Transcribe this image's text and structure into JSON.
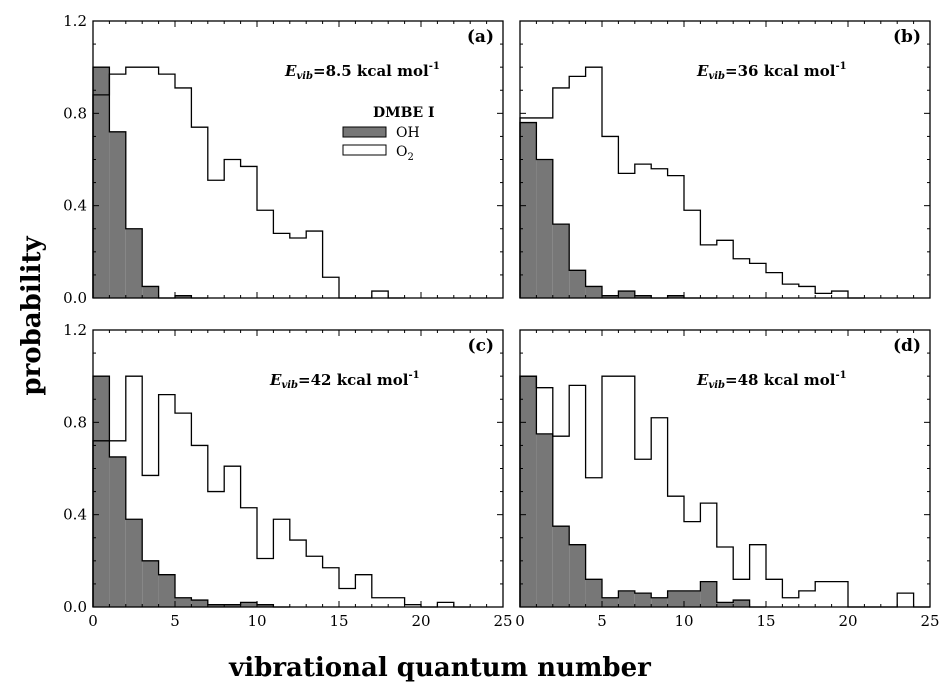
{
  "figure": {
    "xlabel": "vibrational quantum number",
    "ylabel": "probability"
  },
  "legend": {
    "title": "DMBE I",
    "items": [
      {
        "label": "OH",
        "fill": "#777777"
      },
      {
        "label": "O",
        "sub": "2",
        "fill": "#ffffff"
      }
    ]
  },
  "chart_data": [
    {
      "type": "bar",
      "panel": "(a)",
      "annotation": {
        "main": "E",
        "sub": "vib",
        "text": "=8.5 kcal mol",
        "sup": "-1"
      },
      "xlim": [
        0,
        25
      ],
      "ylim": [
        0,
        1.2
      ],
      "xticks": [
        0,
        5,
        10,
        15,
        20,
        25
      ],
      "yticks": [
        0.0,
        0.4,
        0.8,
        1.2
      ],
      "series": [
        {
          "name": "OH",
          "style": "filled",
          "x": [
            0,
            1,
            2,
            3,
            4,
            5,
            6
          ],
          "values": [
            1.0,
            0.72,
            0.3,
            0.05,
            0,
            0.01,
            0
          ]
        },
        {
          "name": "O2",
          "style": "open",
          "x": [
            0,
            1,
            2,
            3,
            4,
            5,
            6,
            7,
            8,
            9,
            10,
            11,
            12,
            13,
            14,
            15,
            16,
            17,
            18
          ],
          "values": [
            0.88,
            0.97,
            1.0,
            1.0,
            0.97,
            0.91,
            0.74,
            0.51,
            0.6,
            0.57,
            0.38,
            0.28,
            0.26,
            0.29,
            0.09,
            0,
            0,
            0.03,
            0
          ]
        }
      ]
    },
    {
      "type": "bar",
      "panel": "(b)",
      "annotation": {
        "main": "E",
        "sub": "vib",
        "text": "=36 kcal mol",
        "sup": "-1"
      },
      "xlim": [
        0,
        25
      ],
      "ylim": [
        0,
        1.2
      ],
      "xticks": [
        0,
        5,
        10,
        15,
        20,
        25
      ],
      "yticks": [
        0.0,
        0.4,
        0.8,
        1.2
      ],
      "series": [
        {
          "name": "OH",
          "style": "filled",
          "x": [
            0,
            1,
            2,
            3,
            4,
            5,
            6,
            7,
            8,
            9,
            10,
            11
          ],
          "values": [
            0.76,
            0.6,
            0.32,
            0.12,
            0.05,
            0.01,
            0.03,
            0.01,
            0,
            0.01,
            0,
            0
          ]
        },
        {
          "name": "O2",
          "style": "open",
          "x": [
            0,
            1,
            2,
            3,
            4,
            5,
            6,
            7,
            8,
            9,
            10,
            11,
            12,
            13,
            14,
            15,
            16,
            17,
            18,
            19,
            20
          ],
          "values": [
            0.78,
            0.78,
            0.91,
            0.96,
            1.0,
            0.7,
            0.54,
            0.58,
            0.56,
            0.53,
            0.38,
            0.23,
            0.25,
            0.17,
            0.15,
            0.11,
            0.06,
            0.05,
            0.02,
            0.03,
            0
          ]
        }
      ]
    },
    {
      "type": "bar",
      "panel": "(c)",
      "annotation": {
        "main": "E",
        "sub": "vib",
        "text": "=42 kcal mol",
        "sup": "-1"
      },
      "xlim": [
        0,
        25
      ],
      "ylim": [
        0,
        1.2
      ],
      "xticks": [
        0,
        5,
        10,
        15,
        20,
        25
      ],
      "yticks": [
        0.0,
        0.4,
        0.8,
        1.2
      ],
      "series": [
        {
          "name": "OH",
          "style": "filled",
          "x": [
            0,
            1,
            2,
            3,
            4,
            5,
            6,
            7,
            8,
            9,
            10,
            11
          ],
          "values": [
            1.0,
            0.65,
            0.38,
            0.2,
            0.14,
            0.04,
            0.03,
            0.01,
            0.01,
            0.02,
            0.01,
            0
          ]
        },
        {
          "name": "O2",
          "style": "open",
          "x": [
            0,
            1,
            2,
            3,
            4,
            5,
            6,
            7,
            8,
            9,
            10,
            11,
            12,
            13,
            14,
            15,
            16,
            17,
            18,
            19,
            20,
            21,
            22
          ],
          "values": [
            0.72,
            0.72,
            1.0,
            0.57,
            0.92,
            0.84,
            0.7,
            0.5,
            0.61,
            0.43,
            0.21,
            0.38,
            0.29,
            0.22,
            0.17,
            0.08,
            0.14,
            0.04,
            0.04,
            0.01,
            0,
            0.02,
            0
          ]
        }
      ]
    },
    {
      "type": "bar",
      "panel": "(d)",
      "annotation": {
        "main": "E",
        "sub": "vib",
        "text": "=48 kcal mol",
        "sup": "-1"
      },
      "xlim": [
        0,
        25
      ],
      "ylim": [
        0,
        1.2
      ],
      "xticks": [
        0,
        5,
        10,
        15,
        20,
        25
      ],
      "yticks": [
        0.0,
        0.4,
        0.8,
        1.2
      ],
      "series": [
        {
          "name": "OH",
          "style": "filled",
          "x": [
            0,
            1,
            2,
            3,
            4,
            5,
            6,
            7,
            8,
            9,
            10,
            11,
            12,
            13,
            14
          ],
          "values": [
            1.0,
            0.75,
            0.35,
            0.27,
            0.12,
            0.04,
            0.07,
            0.06,
            0.04,
            0.07,
            0.07,
            0.11,
            0.02,
            0.03,
            0
          ]
        },
        {
          "name": "O2",
          "style": "open",
          "x": [
            0,
            1,
            2,
            3,
            4,
            5,
            6,
            7,
            8,
            9,
            10,
            11,
            12,
            13,
            14,
            15,
            16,
            17,
            18,
            19,
            20,
            21,
            22,
            23,
            24
          ],
          "values": [
            1.0,
            0.95,
            0.74,
            0.96,
            0.56,
            1.0,
            1.0,
            0.64,
            0.82,
            0.48,
            0.37,
            0.45,
            0.26,
            0.12,
            0.27,
            0.12,
            0.04,
            0.07,
            0.11,
            0.11,
            0,
            0,
            0,
            0.06,
            0
          ]
        }
      ]
    }
  ]
}
